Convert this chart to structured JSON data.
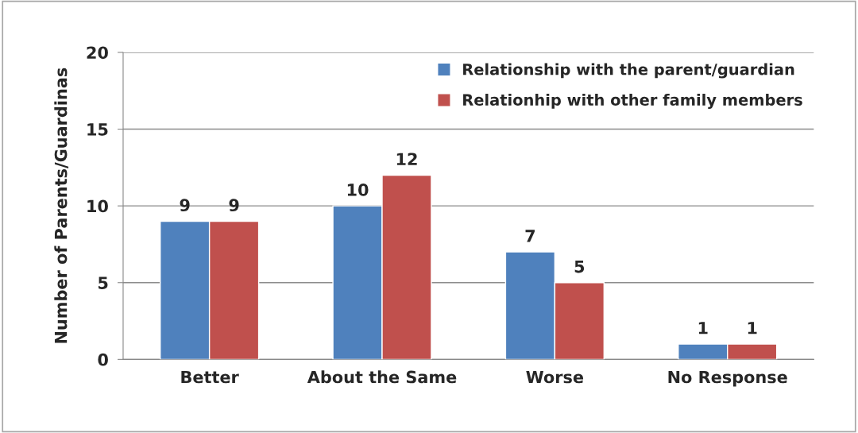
{
  "chart_data": {
    "type": "bar",
    "ylabel": "Number of Parents/Guardinas",
    "categories": [
      "Better",
      "About the Same",
      "Worse",
      "No Response"
    ],
    "series": [
      {
        "name": "Relationship with the parent/guardian",
        "color": "#4f81bd",
        "values": [
          9,
          10,
          7,
          1
        ]
      },
      {
        "name": "Relationhip with other family members",
        "color": "#c0504d",
        "values": [
          9,
          12,
          5,
          1
        ]
      }
    ],
    "ylim": [
      0,
      20
    ],
    "yticks": [
      0,
      5,
      10,
      15,
      20
    ],
    "grid": "y",
    "legend": "top right",
    "data_labels": true
  }
}
